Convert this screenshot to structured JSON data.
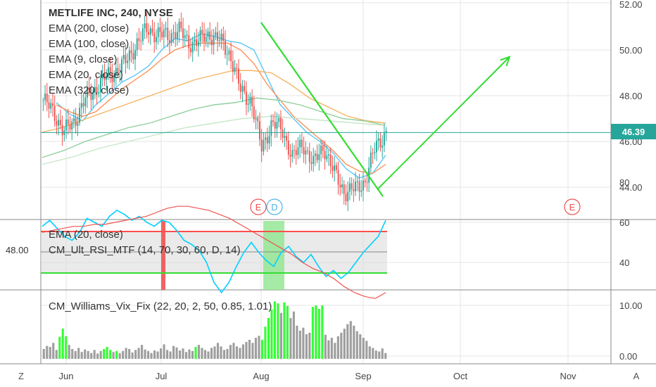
{
  "header": {
    "title": "METLIFE INC, 240, NYSE",
    "indicators": [
      "EMA (200, close)",
      "EMA (100, close)",
      "EMA (9, close)",
      "EMA (20, close)",
      "EMA (320, close)"
    ]
  },
  "last_price": "46.39",
  "colors": {
    "up": "#26a69a",
    "down": "#ef5350",
    "last_line": "#26a69a",
    "ema9": "#4fc3f7",
    "ema20": "#ff8a50",
    "ema100": "#f5b462",
    "ema200": "#8fcf9a",
    "ema320": "#c8e6c9",
    "trend": "#33dd33",
    "rsi": "#00d0ff",
    "rsi_ema": "#ef5350",
    "vix_grey": "#9e9e9e",
    "vix_green": "#33ff33"
  },
  "earnings_markers": [
    {
      "label": "E",
      "date": "Aug"
    },
    {
      "label": "D",
      "date": "Aug"
    },
    {
      "label": "E",
      "date": "Nov"
    }
  ],
  "panes": {
    "rsi": {
      "labels": [
        "EMA (20, close)",
        "CM_Ult_RSI_MTF (14, 70, 30, 60, D, 14)"
      ],
      "left_value": "48.00"
    },
    "vix": {
      "label": "CM_Williams_Vix_Fix (22, 20, 2, 50, 0.85, 1.01)"
    }
  },
  "bottom_bar": {
    "left_btn": "Z",
    "right_btn": "A"
  },
  "chart_data": [
    {
      "type": "candlestick",
      "title": "METLIFE INC, 240, NYSE",
      "x_tick_labels": [
        "Jun",
        "Jul",
        "Aug",
        "Sep",
        "Oct",
        "Nov"
      ],
      "y_tick_labels": [
        "44.00",
        "46.00",
        "48.00",
        "50.00",
        "52.00"
      ],
      "ylim": [
        42.0,
        52.1
      ],
      "close_path": [
        47.8,
        47.3,
        46.4,
        46.9,
        47.8,
        48.3,
        48.8,
        49.1,
        49.5,
        50.3,
        50.9,
        50.7,
        50.6,
        50.9,
        50.3,
        50.4,
        50.7,
        50.4,
        49.8,
        48.2,
        47.8,
        45.7,
        46.8,
        46.5,
        45.3,
        45.9,
        45.0,
        45.8,
        44.6,
        43.8,
        43.9,
        44.3,
        45.8,
        46.4
      ],
      "series": [
        {
          "name": "EMA (9, close)",
          "values": [
            47.7,
            47.2,
            46.9,
            47.6,
            48.1,
            48.6,
            48.9,
            49.3,
            50.0,
            50.5,
            50.4,
            50.7,
            50.6,
            50.4,
            50.3,
            50.0,
            48.8,
            47.6,
            47.0,
            46.4,
            46.0,
            45.5,
            44.8,
            44.4,
            44.6,
            45.4
          ]
        },
        {
          "name": "EMA (20, close)",
          "values": [
            47.6,
            47.3,
            47.1,
            47.3,
            47.8,
            48.3,
            48.7,
            49.1,
            49.6,
            50.0,
            50.2,
            50.3,
            50.3,
            50.3,
            50.0,
            49.4,
            48.5,
            47.8,
            47.1,
            46.6,
            46.1,
            45.6,
            45.0,
            44.7,
            44.6,
            45.0
          ]
        },
        {
          "name": "EMA (100, close)",
          "values": [
            46.4,
            46.6,
            46.9,
            47.2,
            47.5,
            47.8,
            48.1,
            48.4,
            48.7,
            48.9,
            49.1,
            49.1,
            49.0,
            48.5,
            47.9,
            47.5,
            47.1,
            46.9,
            46.8
          ]
        },
        {
          "name": "EMA (200, close)",
          "values": [
            45.3,
            45.6,
            46.0,
            46.3,
            46.6,
            46.8,
            47.1,
            47.4,
            47.6,
            47.7,
            47.9,
            47.8,
            47.6,
            47.3,
            47.0,
            46.9,
            46.7
          ]
        },
        {
          "name": "EMA (320, close)",
          "values": [
            45.0,
            45.3,
            45.7,
            46.0,
            46.3,
            46.6,
            46.8,
            47.0,
            47.1,
            47.0,
            46.9,
            46.8,
            46.7
          ]
        }
      ],
      "last_value": 46.39,
      "annotations": [
        {
          "kind": "trend_line",
          "from": [
            "Aug",
            51.2
          ],
          "to": [
            "Sep",
            43.6
          ]
        },
        {
          "kind": "arrow",
          "from": [
            "Sep",
            43.9
          ],
          "to": [
            "Oct",
            49.7
          ]
        }
      ]
    },
    {
      "type": "line",
      "title": "CM_Ult_RSI_MTF (14, 70, 30, 60, D, 14)",
      "y_tick_labels": [
        "40",
        "60",
        "80"
      ],
      "ylim": [
        15,
        83
      ],
      "bands": [
        70,
        30
      ],
      "series": [
        {
          "name": "CM_Ult_RSI_MTF",
          "values": [
            58,
            61,
            57,
            53,
            51,
            55,
            62,
            60,
            58,
            63,
            66,
            64,
            61,
            63,
            60,
            58,
            61,
            60,
            56,
            51,
            49,
            46,
            40,
            30,
            25,
            30,
            38,
            45,
            50,
            45,
            41,
            38,
            45,
            48,
            43,
            40,
            44,
            38,
            33,
            36,
            32,
            35,
            40,
            45,
            49,
            53,
            61
          ]
        },
        {
          "name": "EMA (20, close)",
          "values": [
            55,
            56,
            57,
            58,
            58,
            59,
            59,
            60,
            61,
            62,
            63,
            65,
            67,
            68,
            68,
            67,
            66,
            64,
            62,
            59,
            56,
            53,
            50,
            47,
            44,
            40,
            37,
            35,
            32,
            28,
            25,
            23,
            22,
            25
          ]
        }
      ]
    },
    {
      "type": "bar",
      "title": "CM_Williams_Vix_Fix (22, 20, 2, 50, 0.85, 1.01)",
      "y_tick_labels": [
        "0.00",
        "10.00"
      ],
      "ylim": [
        0,
        11
      ],
      "values": [
        1.4,
        2.0,
        1.8,
        2.6,
        1.2,
        3.8,
        5.4,
        3.9,
        2.2,
        1.4,
        1.0,
        1.6,
        0.8,
        1.3,
        1.0,
        0.6,
        1.2,
        0.5,
        1.0,
        1.4,
        1.8,
        1.2,
        0.8,
        1.0,
        0.6,
        1.0,
        1.6,
        1.4,
        0.7,
        1.2,
        1.6,
        2.2,
        1.3,
        1.0,
        0.6,
        1.1,
        0.9,
        1.5,
        2.3,
        1.2,
        0.9,
        2.0,
        1.7,
        1.1,
        1.5,
        0.8,
        1.3,
        1.0,
        1.8,
        2.2,
        1.6,
        1.2,
        0.9,
        1.6,
        1.9,
        2.6,
        1.9,
        1.2,
        1.4,
        2.2,
        2.6,
        1.9,
        1.6,
        2.3,
        2.8,
        3.2,
        2.6,
        3.6,
        4.0,
        3.2,
        5.8,
        7.5,
        9.2,
        10.8,
        10.4,
        8.5,
        10.6,
        9.9,
        7.5,
        8.8,
        6.0,
        5.0,
        5.6,
        4.3,
        4.6,
        9.7,
        10.0,
        9.3,
        10.0,
        4.2,
        3.1,
        3.6,
        2.6,
        3.9,
        4.6,
        5.4,
        6.3,
        6.9,
        6.0,
        4.9,
        4.3,
        3.6,
        3.0,
        1.9,
        1.6,
        1.1,
        0.9,
        1.5,
        0.6
      ],
      "green_indices": [
        5,
        6,
        7,
        19,
        20,
        21,
        23,
        48,
        69,
        70,
        71,
        72,
        73,
        74,
        76,
        77,
        85,
        86,
        87,
        88
      ]
    }
  ]
}
